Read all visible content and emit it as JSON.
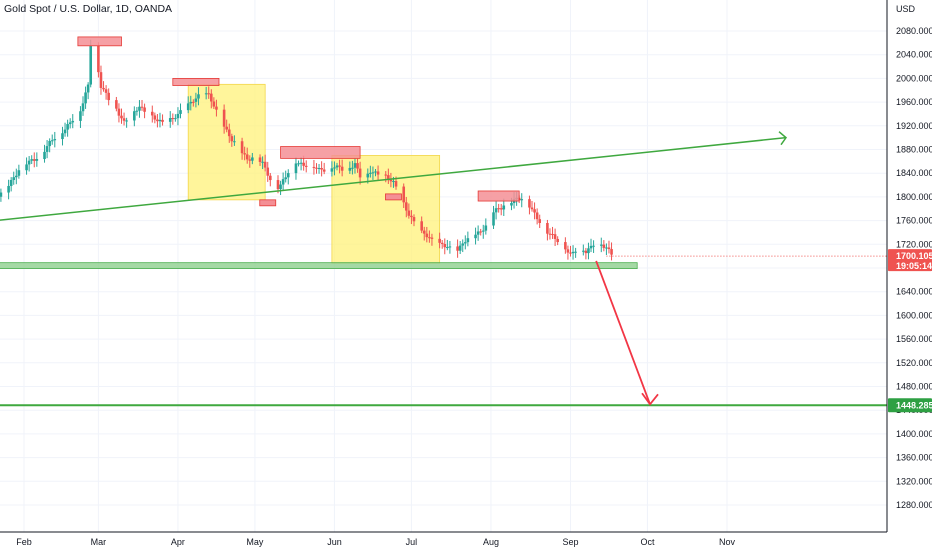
{
  "header": {
    "title": "Gold Spot / U.S. Dollar, 1D, OANDA",
    "currency": "USD"
  },
  "price_badge": {
    "price": "1700.105",
    "countdown": "19:05:14",
    "color": "#ef5350"
  },
  "target_badge": {
    "price": "1448.285",
    "color": "#2ea043"
  },
  "colors": {
    "up": "#26a69a",
    "down": "#ef5350",
    "trendline": "#3fa83f",
    "support_zone": "#8ed08e",
    "highlight_zone": "#fff27a",
    "resistance_box": "#f48f95",
    "arrow": "#f23645"
  },
  "chart_data": {
    "type": "candlestick",
    "title": "Gold Spot / U.S. Dollar, 1D, OANDA",
    "y_unit": "USD",
    "ylim": [
      1250,
      2100
    ],
    "y_ticks": [
      2080,
      2040,
      2000,
      1960,
      1920,
      1880,
      1840,
      1800,
      1760,
      1720,
      1680,
      1640,
      1600,
      1560,
      1520,
      1480,
      1440,
      1400,
      1360,
      1320,
      1280
    ],
    "y_tick_labels": [
      "2080.000",
      "2040.000",
      "2000.000",
      "1960.000",
      "1920.000",
      "1880.000",
      "1840.000",
      "1800.000",
      "1760.000",
      "1720.000",
      "1680.000",
      "1640.000",
      "1600.000",
      "1560.000",
      "1520.000",
      "1480.000",
      "1440.000",
      "1400.000",
      "1360.000",
      "1320.000",
      "1280.000"
    ],
    "x_ticks": [
      {
        "label": "Feb",
        "day": 31
      },
      {
        "label": "Mar",
        "day": 60
      },
      {
        "label": "Apr",
        "day": 91
      },
      {
        "label": "May",
        "day": 121
      },
      {
        "label": "Jun",
        "day": 152
      },
      {
        "label": "Jul",
        "day": 182
      },
      {
        "label": "Aug",
        "day": 213
      },
      {
        "label": "Sep",
        "day": 244
      },
      {
        "label": "Oct",
        "day": 274
      },
      {
        "label": "Nov",
        "day": 305
      }
    ],
    "xlim_days": [
      0,
      336
    ],
    "grid": true,
    "series_path": [
      [
        0,
        1815
      ],
      [
        6,
        1812
      ],
      [
        10,
        1838
      ],
      [
        14,
        1822
      ],
      [
        15,
        1785
      ],
      [
        18,
        1790
      ],
      [
        22,
        1805
      ],
      [
        26,
        1828
      ],
      [
        30,
        1850
      ],
      [
        34,
        1862
      ],
      [
        38,
        1873
      ],
      [
        42,
        1895
      ],
      [
        46,
        1912
      ],
      [
        50,
        1930
      ],
      [
        53,
        1945
      ],
      [
        56,
        1990
      ],
      [
        57,
        2060
      ],
      [
        59,
        2035
      ],
      [
        61,
        1985
      ],
      [
        64,
        1965
      ],
      [
        67,
        1950
      ],
      [
        70,
        1925
      ],
      [
        73,
        1935
      ],
      [
        76,
        1955
      ],
      [
        79,
        1940
      ],
      [
        82,
        1930
      ],
      [
        85,
        1925
      ],
      [
        88,
        1932
      ],
      [
        91,
        1938
      ],
      [
        94,
        1950
      ],
      [
        97,
        1965
      ],
      [
        100,
        1975
      ],
      [
        103,
        1970
      ],
      [
        106,
        1945
      ],
      [
        109,
        1920
      ],
      [
        112,
        1895
      ],
      [
        115,
        1880
      ],
      [
        118,
        1865
      ],
      [
        121,
        1868
      ],
      [
        124,
        1855
      ],
      [
        127,
        1830
      ],
      [
        129,
        1815
      ],
      [
        131,
        1820
      ],
      [
        134,
        1840
      ],
      [
        137,
        1860
      ],
      [
        140,
        1855
      ],
      [
        143,
        1852
      ],
      [
        146,
        1845
      ],
      [
        149,
        1848
      ],
      [
        152,
        1852
      ],
      [
        155,
        1845
      ],
      [
        158,
        1850
      ],
      [
        160,
        1858
      ],
      [
        162,
        1835
      ],
      [
        164,
        1830
      ],
      [
        166,
        1842
      ],
      [
        169,
        1840
      ],
      [
        172,
        1835
      ],
      [
        175,
        1822
      ],
      [
        177,
        1808
      ],
      [
        180,
        1780
      ],
      [
        182,
        1765
      ],
      [
        185,
        1740
      ],
      [
        188,
        1735
      ],
      [
        191,
        1725
      ],
      [
        194,
        1718
      ],
      [
        197,
        1712
      ],
      [
        199,
        1702
      ],
      [
        202,
        1725
      ],
      [
        205,
        1728
      ],
      [
        208,
        1738
      ],
      [
        211,
        1752
      ],
      [
        214,
        1775
      ],
      [
        217,
        1780
      ],
      [
        220,
        1792
      ],
      [
        223,
        1798
      ],
      [
        226,
        1795
      ],
      [
        229,
        1778
      ],
      [
        232,
        1760
      ],
      [
        235,
        1740
      ],
      [
        238,
        1728
      ],
      [
        241,
        1722
      ],
      [
        244,
        1703
      ],
      [
        247,
        1712
      ],
      [
        250,
        1708
      ],
      [
        253,
        1722
      ],
      [
        256,
        1718
      ],
      [
        258,
        1712
      ],
      [
        261,
        1700
      ]
    ],
    "annotations": {
      "trendline": {
        "from": [
          0,
          1751
        ],
        "to": [
          328,
          1900
        ]
      },
      "support_zone": {
        "day_from": 0,
        "day_to": 270,
        "price_from": 1689,
        "price_to": 1679
      },
      "target_level": 1448.285,
      "current_price_line": 1700.105,
      "projection_arrow": {
        "from": [
          254,
          1692
        ],
        "to": [
          275,
          1450
        ]
      },
      "highlight_zones": [
        {
          "day_from": 95,
          "day_to": 125,
          "price_from": 1990,
          "price_to": 1795
        },
        {
          "day_from": 151,
          "day_to": 193,
          "price_from": 1870,
          "price_to": 1688
        }
      ],
      "resistance_boxes": [
        {
          "day_from": 52,
          "day_to": 69,
          "price_from": 2070,
          "price_to": 2055
        },
        {
          "day_from": 89,
          "day_to": 107,
          "price_from": 2000,
          "price_to": 1988
        },
        {
          "day_from": 131,
          "day_to": 162,
          "price_from": 1885,
          "price_to": 1865
        },
        {
          "day_from": 208,
          "day_to": 224,
          "price_from": 1810,
          "price_to": 1793
        }
      ],
      "low_markers": [
        {
          "day": 18,
          "price": 1790
        },
        {
          "day": 126,
          "price": 1790
        },
        {
          "day": 175,
          "price": 1800
        }
      ]
    }
  }
}
